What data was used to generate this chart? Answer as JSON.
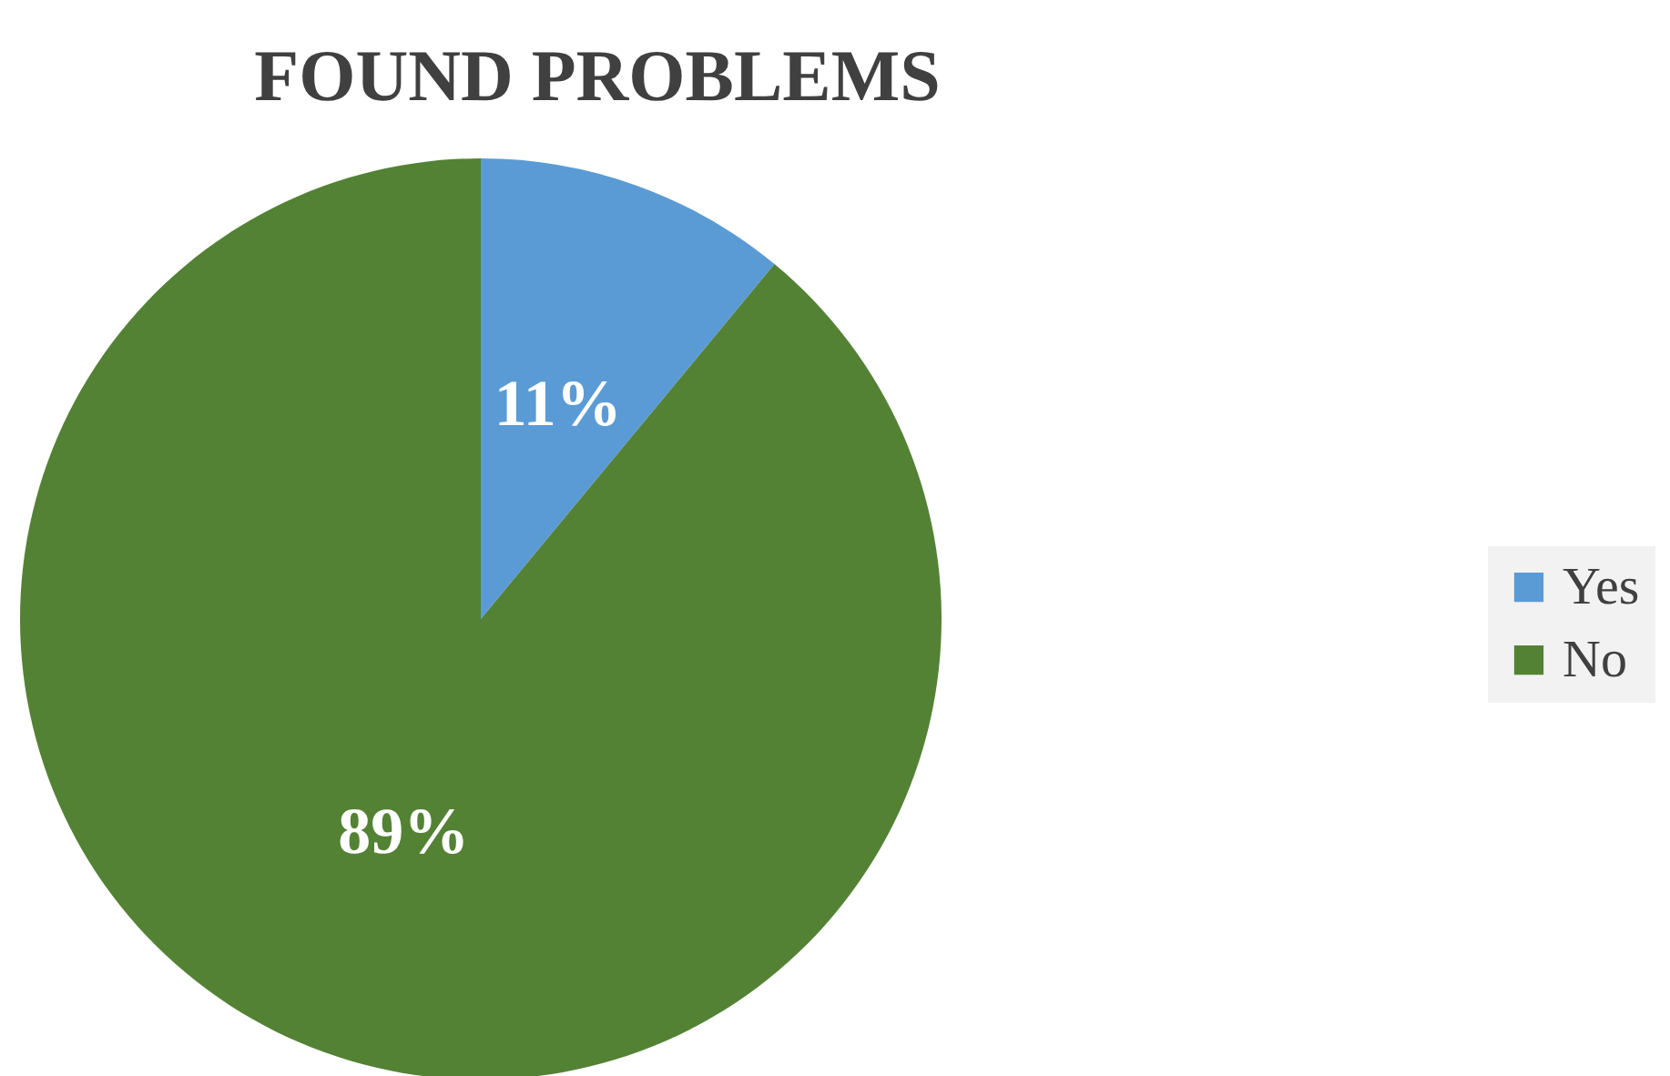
{
  "chart_data": {
    "type": "pie",
    "title": "FOUND PROBLEMS",
    "categories": [
      "Yes",
      "No"
    ],
    "values": [
      11,
      89
    ],
    "colors": [
      "#5b9bd5",
      "#548235"
    ],
    "value_labels": [
      "11%",
      "89%"
    ],
    "legend": "right"
  }
}
